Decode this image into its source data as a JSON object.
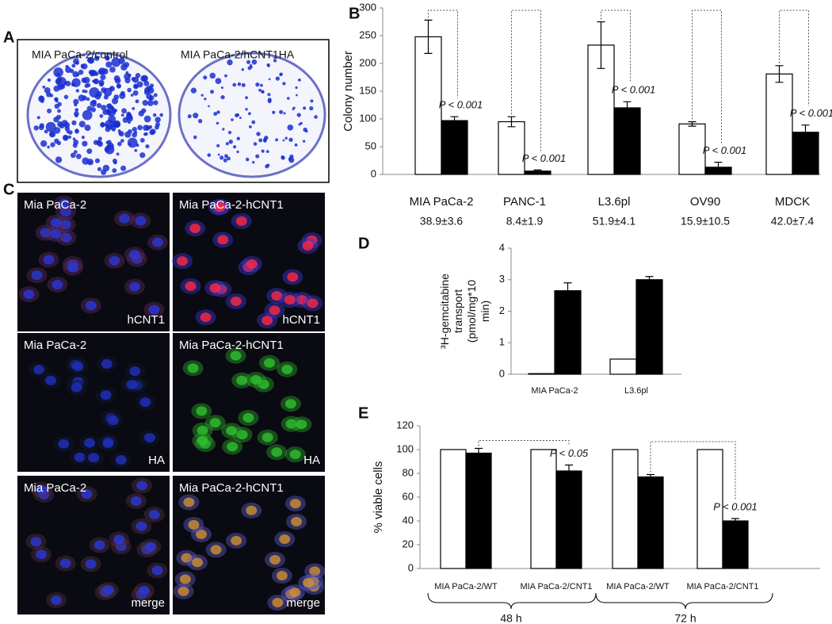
{
  "panel_letters": [
    "A",
    "B",
    "C",
    "D",
    "E"
  ],
  "panel_a": {
    "labels": [
      "MIA PaCa-2/control",
      "MIA PaCa-2/hCNT1HA"
    ]
  },
  "panel_c": {
    "rows": [
      {
        "left_title": "Mia PaCa-2",
        "right_title": "Mia PaCa-2-hCNT1",
        "stain": "hCNT1"
      },
      {
        "left_title": "Mia PaCa-2",
        "right_title": "Mia PaCa-2-hCNT1",
        "stain": "HA"
      },
      {
        "left_title": "Mia PaCa-2",
        "right_title": "Mia PaCa-2-hCNT1",
        "stain": "merge"
      }
    ]
  },
  "chart_data": [
    {
      "type": "bar",
      "ylabel": "Colony number",
      "categories": [
        "MIA PaCa-2",
        "PANC-1",
        "L3.6pl",
        "OV90",
        "MDCK"
      ],
      "category_sublabels": [
        "38.9±3.6",
        "8.4±1.9",
        "51.9±4.1",
        "15.9±10.5",
        "42.0±7.4"
      ],
      "series": [
        {
          "color": "#ffffff",
          "values": [
            248,
            95,
            233,
            91,
            181
          ],
          "errors": [
            30,
            9,
            42,
            4,
            15
          ]
        },
        {
          "color": "#000000",
          "values": [
            97,
            6,
            120,
            13,
            76
          ],
          "errors": [
            7,
            2,
            11,
            9,
            13
          ]
        }
      ],
      "annotations": [
        "P < 0.001",
        "P < 0.001",
        "P < 0.001",
        "P < 0.001",
        "P < 0.001"
      ],
      "ylim": [
        0,
        300
      ],
      "yticks": [
        0,
        50,
        100,
        150,
        200,
        250,
        300
      ]
    },
    {
      "type": "bar",
      "ylabel": [
        "³H-gemcitabine",
        "transport",
        "(pmol/mg*10",
        "min)"
      ],
      "categories": [
        "MIA PaCa-2",
        "L3.6pl"
      ],
      "series": [
        {
          "color": "#ffffff",
          "values": [
            0.02,
            0.48
          ]
        },
        {
          "color": "#000000",
          "values": [
            2.65,
            3.0
          ],
          "errors": [
            0.25,
            0.1
          ]
        }
      ],
      "ylim": [
        0,
        4
      ],
      "yticks": [
        0,
        1,
        2,
        3,
        4
      ]
    },
    {
      "type": "bar",
      "ylabel": "% viable cells",
      "categories": [
        "MIA PaCa-2/WT",
        "MIA PaCa-2/CNT1",
        "MIA PaCa-2/WT",
        "MIA PaCa-2/CNT1"
      ],
      "group_labels": [
        "48 h",
        "72 h"
      ],
      "series": [
        {
          "color": "#ffffff",
          "values": [
            100,
            100,
            100,
            100
          ]
        },
        {
          "color": "#000000",
          "values": [
            97,
            82,
            77,
            40
          ],
          "errors": [
            4,
            5,
            2,
            2
          ]
        }
      ],
      "annotations": [
        null,
        "P < 0.05",
        null,
        "P < 0.001"
      ],
      "ylim": [
        0,
        120
      ],
      "yticks": [
        0,
        20,
        40,
        60,
        80,
        100,
        120
      ]
    }
  ]
}
